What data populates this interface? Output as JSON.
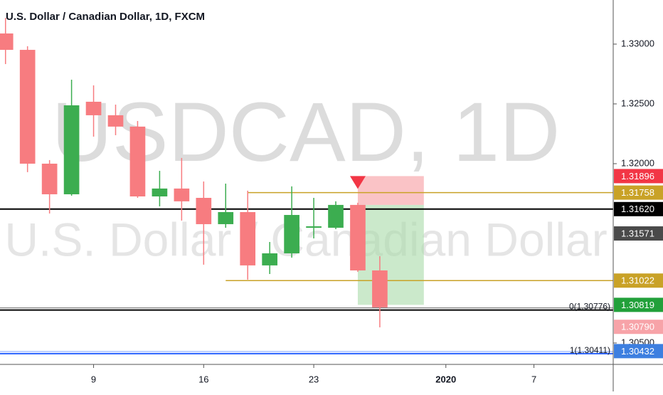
{
  "chart_data": {
    "type": "candlestick",
    "title": "U.S. Dollar / Canadian Dollar, 1D, FXCM",
    "watermark_symbol": "USDCAD, 1D",
    "watermark_name": "U.S. Dollar / Canadian Dollar",
    "up_color": "#3cad50",
    "down_color": "#f77c80",
    "open": [
      1.33089,
      1.32952,
      1.32,
      1.31744,
      1.32518,
      1.32405,
      1.3231,
      1.31726,
      1.31792,
      1.31714,
      1.31494,
      1.31595,
      1.31149,
      1.3125,
      1.31464,
      1.31464,
      1.31655,
      1.31107
    ],
    "high": [
      1.3322,
      1.32982,
      1.3203,
      1.32702,
      1.32655,
      1.32494,
      1.32357,
      1.3194,
      1.32048,
      1.31851,
      1.31833,
      1.31774,
      1.31345,
      1.3181,
      1.31714,
      1.31685,
      1.31673,
      1.31226
    ],
    "low": [
      1.32833,
      1.31929,
      1.31583,
      1.31732,
      1.32226,
      1.32238,
      1.31714,
      1.31643,
      1.31524,
      1.31155,
      1.31464,
      1.3103,
      1.31077,
      1.31214,
      1.31375,
      1.31452,
      1.31095,
      1.30631
    ],
    "close": [
      1.32952,
      1.32,
      1.31744,
      1.32488,
      1.32405,
      1.3231,
      1.31726,
      1.31792,
      1.31685,
      1.31494,
      1.31595,
      1.31149,
      1.3125,
      1.31571,
      1.31476,
      1.31655,
      1.31107,
      1.30798
    ],
    "xlim": [
      -0.25,
      27.6
    ],
    "xticks": [
      {
        "value": 4,
        "label": "9"
      },
      {
        "value": 9,
        "label": "16"
      },
      {
        "value": 14,
        "label": "23"
      },
      {
        "value": 20,
        "label": "2020"
      },
      {
        "value": 24,
        "label": "7"
      }
    ],
    "ylim": [
      1.30321,
      1.33369
    ],
    "yticks": [
      {
        "value": 1.33,
        "label": "1.33000"
      },
      {
        "value": 1.325,
        "label": "1.32500"
      },
      {
        "value": 1.32,
        "label": "1.32000"
      },
      {
        "value": 1.305,
        "label": "1.30500"
      }
    ],
    "level_lines": [
      {
        "value": 1.31758,
        "from": 11,
        "color": "#c9a227"
      },
      {
        "value": 1.31022,
        "from": 10,
        "color": "#c9a227"
      },
      {
        "value": 1.3162,
        "from": -0.25,
        "color": "#000000"
      }
    ],
    "fib_levels": [
      {
        "value": 1.30776,
        "label": "0(1.30776)",
        "color": "#000000"
      },
      {
        "value": 1.30411,
        "label": "1(1.30411)",
        "color": "#2962ff"
      }
    ],
    "position": {
      "start": 16,
      "end": 19,
      "entry": 1.31655,
      "stop": 1.31896,
      "target": 1.30819
    },
    "price_tags": [
      {
        "value": 1.31896,
        "label": "1.31896",
        "color": "#f23645"
      },
      {
        "value": 1.31758,
        "label": "1.31758",
        "color": "#c9a227"
      },
      {
        "value": 1.3162,
        "label": "1.31620",
        "color": "#000000"
      },
      {
        "value": 1.31571,
        "label": "1.31571",
        "color": "#4a4a4a"
      },
      {
        "value": 1.31022,
        "label": "1.31022",
        "color": "#c9a227"
      },
      {
        "value": 1.30819,
        "label": "1.30819",
        "color": "#22a03a"
      },
      {
        "value": 1.3079,
        "label": "1.30790",
        "color": "#f7a3a8"
      },
      {
        "value": 1.30432,
        "label": "1.30432",
        "color": "#3d7fe0"
      }
    ]
  }
}
